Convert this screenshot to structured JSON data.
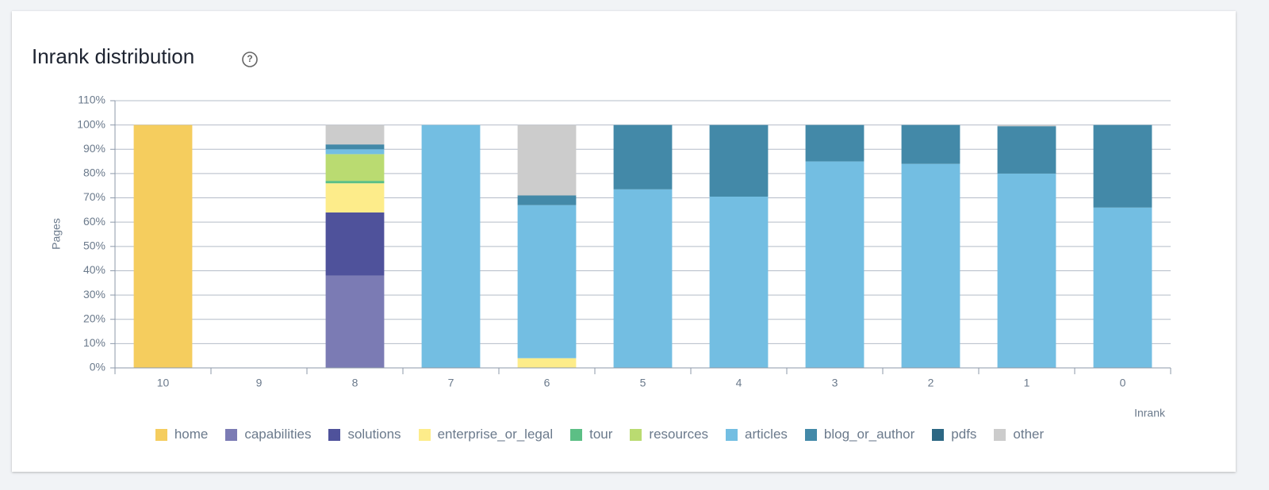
{
  "chart_data": {
    "type": "stacked_bar",
    "title": "Inrank distribution",
    "y_label": "Pages",
    "x_label": "Inrank",
    "categories": [
      "10",
      "9",
      "8",
      "7",
      "6",
      "5",
      "4",
      "3",
      "2",
      "1",
      "0"
    ],
    "ylim": [
      0,
      110
    ],
    "yticks": [
      {
        "value": 0,
        "label": "0%"
      },
      {
        "value": 10,
        "label": "10%"
      },
      {
        "value": 20,
        "label": "20%"
      },
      {
        "value": 30,
        "label": "30%"
      },
      {
        "value": 40,
        "label": "40%"
      },
      {
        "value": 50,
        "label": "50%"
      },
      {
        "value": 60,
        "label": "60%"
      },
      {
        "value": 70,
        "label": "70%"
      },
      {
        "value": 80,
        "label": "80%"
      },
      {
        "value": 90,
        "label": "90%"
      },
      {
        "value": 100,
        "label": "100%"
      },
      {
        "value": 110,
        "label": "110%"
      }
    ],
    "grid": true,
    "legend": "bottom",
    "series": [
      {
        "name": "home",
        "color": "#f5cd5e",
        "values": [
          100,
          0,
          0,
          0,
          0,
          0,
          0,
          0,
          0,
          0,
          0
        ]
      },
      {
        "name": "capabilities",
        "color": "#7b7bb4",
        "values": [
          0,
          0,
          38,
          0,
          0,
          0,
          0,
          0,
          0,
          0,
          0
        ]
      },
      {
        "name": "solutions",
        "color": "#4f529b",
        "values": [
          0,
          0,
          26,
          0,
          0,
          0,
          0,
          0,
          0,
          0,
          0
        ]
      },
      {
        "name": "enterprise_or_legal",
        "color": "#fdec8a",
        "values": [
          0,
          0,
          12,
          0,
          4,
          0,
          0,
          0,
          0,
          0,
          0
        ]
      },
      {
        "name": "tour",
        "color": "#5cbf85",
        "values": [
          0,
          0,
          1,
          0,
          0,
          0,
          0,
          0,
          0,
          0,
          0
        ]
      },
      {
        "name": "resources",
        "color": "#badb71",
        "values": [
          0,
          0,
          11,
          0,
          0,
          0,
          0,
          0,
          0,
          0,
          0
        ]
      },
      {
        "name": "articles",
        "color": "#73bee2",
        "values": [
          0,
          0,
          2,
          100,
          63,
          73.5,
          70.5,
          85,
          84,
          80,
          66
        ]
      },
      {
        "name": "blog_or_author",
        "color": "#4389a8",
        "values": [
          0,
          0,
          2,
          0,
          4,
          26.5,
          29.5,
          15,
          16,
          19.5,
          34
        ]
      },
      {
        "name": "pdfs",
        "color": "#2c6783",
        "values": [
          0,
          0,
          0,
          0,
          0,
          0,
          0,
          0,
          0,
          0,
          0
        ]
      },
      {
        "name": "other",
        "color": "#cccccc",
        "values": [
          0,
          0,
          8,
          0,
          29,
          0,
          0,
          0,
          0,
          0.5,
          0
        ]
      }
    ]
  }
}
